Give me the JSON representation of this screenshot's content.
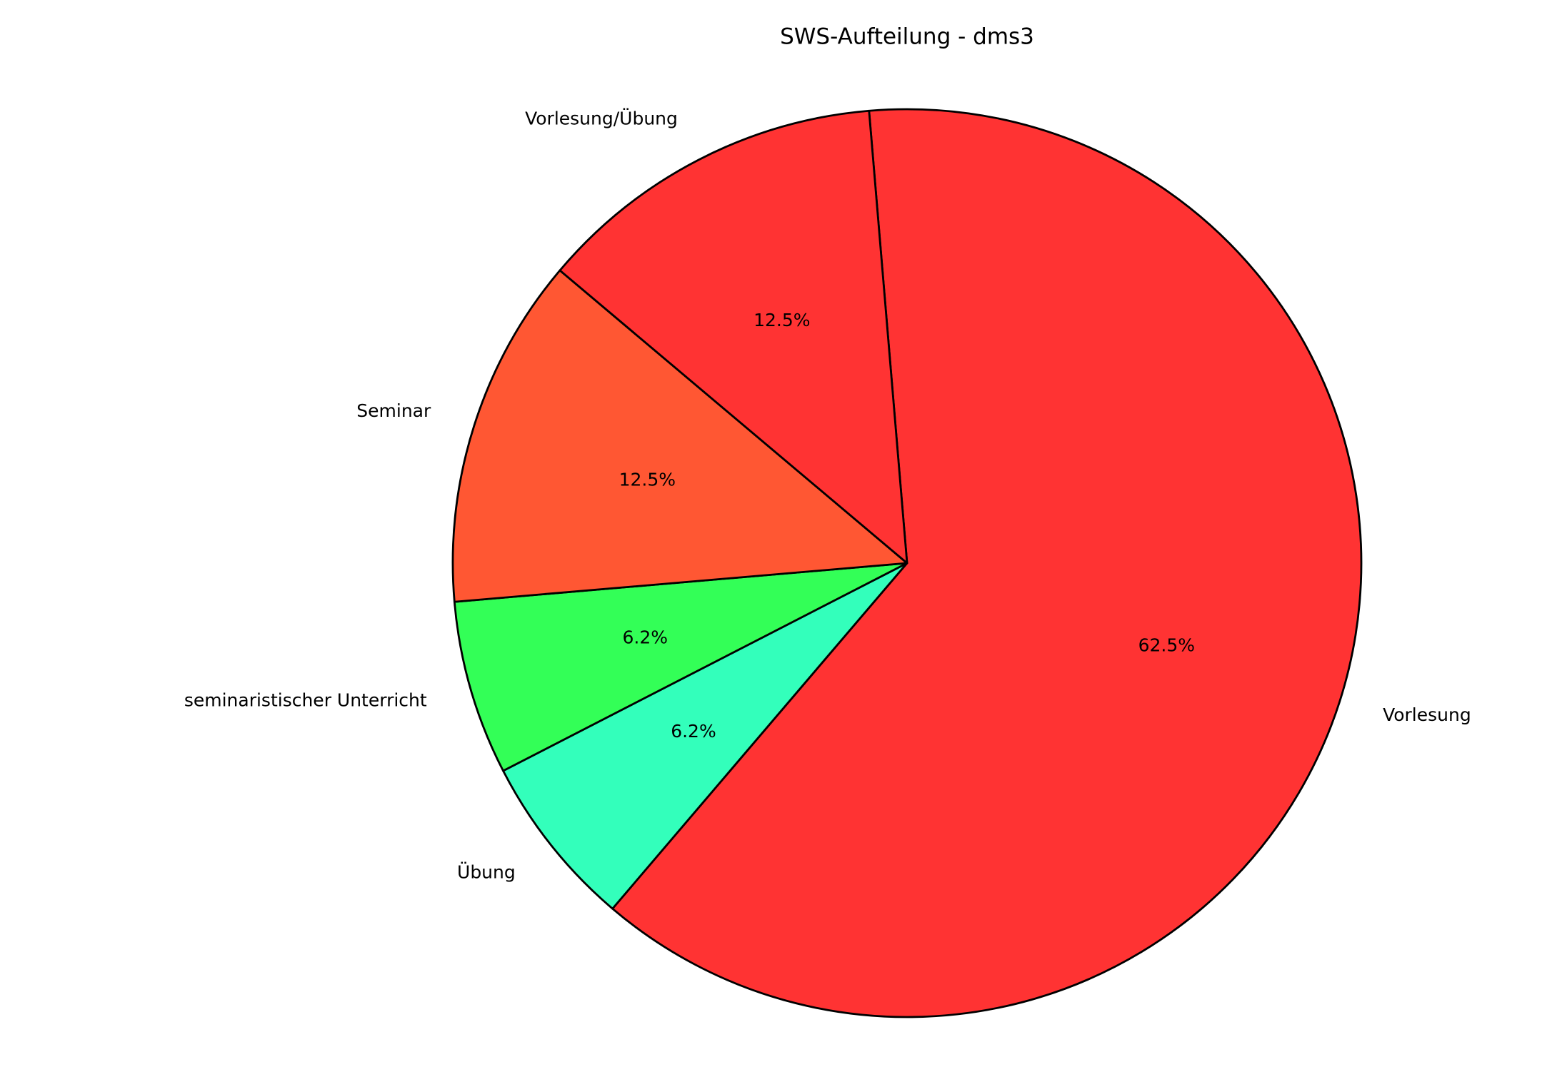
{
  "chart_data": {
    "type": "pie",
    "title": "SWS-Aufteilung - dms3",
    "categories": [
      "Vorlesung",
      "Übung",
      "seminaristischer Unterricht",
      "Seminar",
      "Vorlesung/Übung"
    ],
    "values": [
      62.5,
      6.2,
      6.2,
      12.5,
      12.5
    ],
    "value_labels": [
      "62.5%",
      "6.2%",
      "6.2%",
      "12.5%",
      "12.5%"
    ],
    "colors": [
      "#ff3333",
      "#33ffbb",
      "#33ff57",
      "#ff5733",
      "#ff3333"
    ]
  }
}
